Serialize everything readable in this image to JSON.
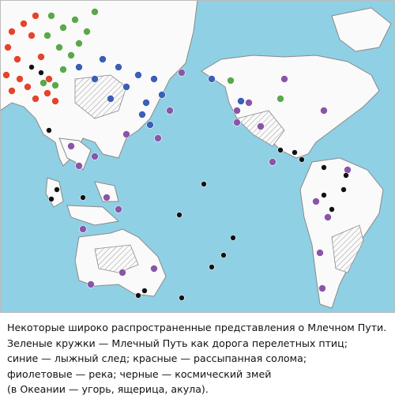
{
  "caption": {
    "lines": [
      "Некоторые широко распространенные представления о Млечном Пути.",
      "Зеленые кружки — Млечный Путь как дорога перелетных птиц;",
      "синие — лыжный след; красные — рассыпанная солома;",
      "фиолетовые — река; черные — космический змей",
      "(в Океании — угорь, ящерица, акула)."
    ]
  }
}
